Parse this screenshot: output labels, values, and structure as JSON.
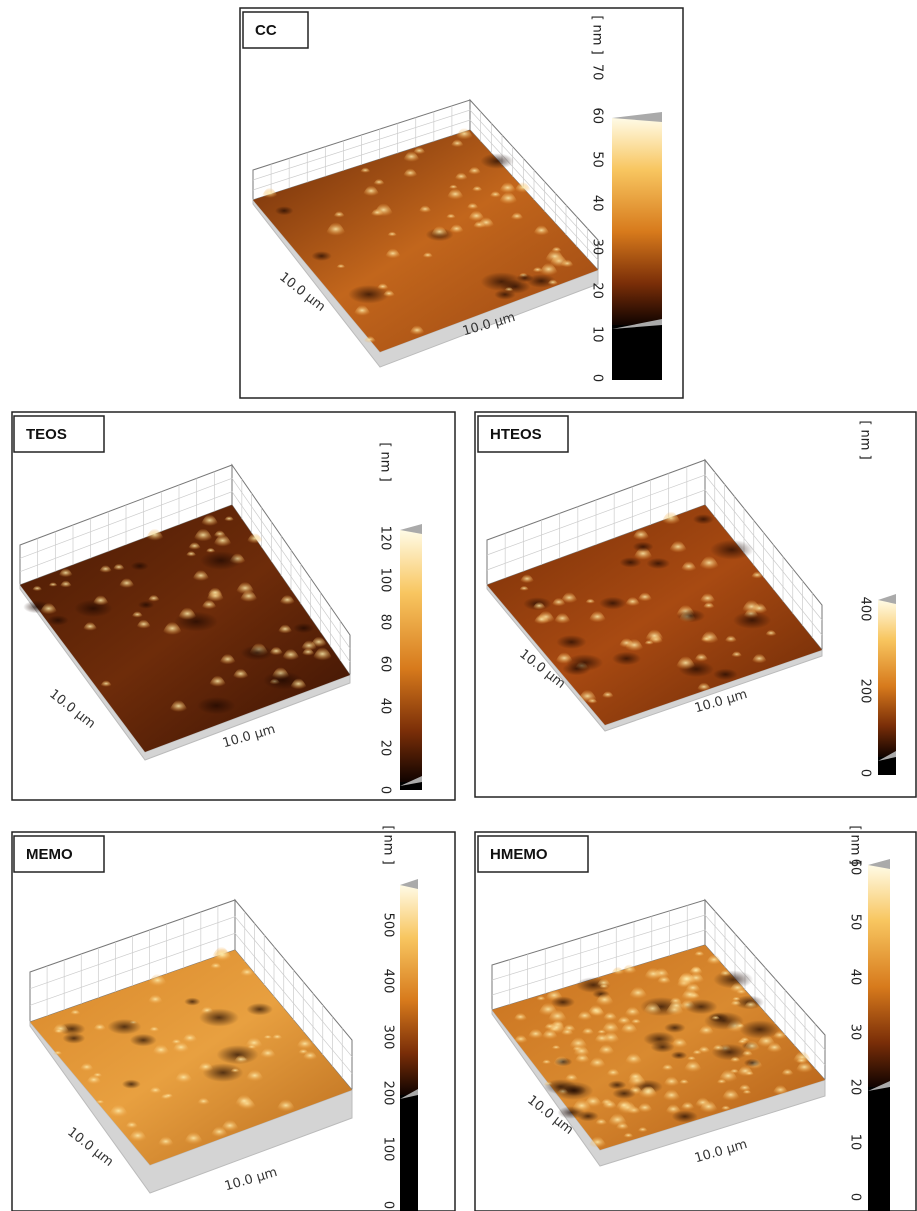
{
  "panels": [
    {
      "label": "CC",
      "unit": "[ nm ]",
      "ticks": [
        0,
        10,
        20,
        30,
        40,
        50,
        60,
        70
      ],
      "y_label": "10.0 µm",
      "x_label": "10.0 µm"
    },
    {
      "label": "TEOS",
      "unit": "[ nm ]",
      "ticks": [
        0,
        20,
        40,
        60,
        80,
        100,
        120
      ],
      "y_label": "10.0 µm",
      "x_label": "10.0 µm"
    },
    {
      "label": "HTEOS",
      "unit": "[ nm ]",
      "ticks": [
        0,
        200,
        400
      ],
      "y_label": "10.0 µm",
      "x_label": "10.0 µm"
    },
    {
      "label": "MEMO",
      "unit": "[ nm ]",
      "ticks": [
        0,
        100,
        200,
        300,
        400,
        500
      ],
      "y_label": "10.0 µm",
      "x_label": "10.0 µm"
    },
    {
      "label": "HMEMO",
      "unit": "[ nm ]",
      "ticks": [
        0,
        10,
        20,
        30,
        40,
        50,
        60
      ],
      "y_label": "10.0 µm",
      "x_label": "10.0 µm"
    }
  ]
}
